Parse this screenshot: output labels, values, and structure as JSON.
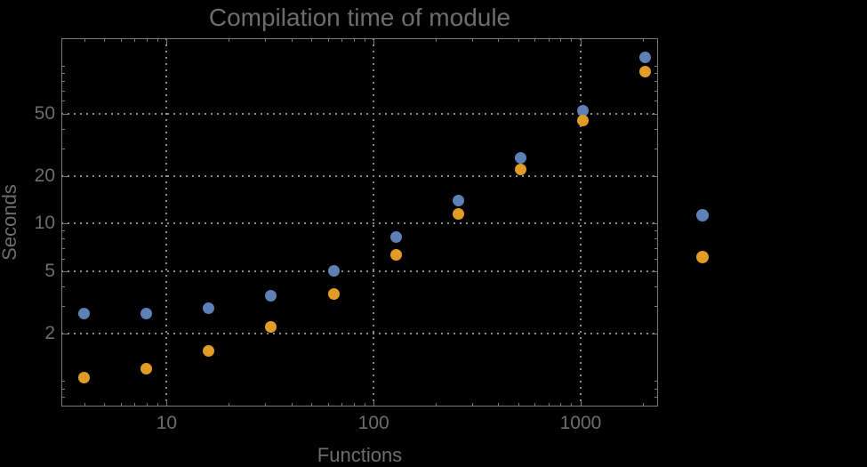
{
  "colors": {
    "background": "#000000",
    "frame": "#7a7a7a",
    "grid": "#8a8a8a",
    "text": "#6d6d6d",
    "series_blue": "#5E81B5",
    "series_orange": "#E09C24"
  },
  "chart_data": {
    "type": "scatter",
    "title": "Compilation time of module",
    "xlabel": "Functions",
    "ylabel": "Seconds",
    "xscale": "log",
    "yscale": "log",
    "xlim": [
      3.1,
      2365
    ],
    "ylim": [
      0.69,
      150
    ],
    "grid": "major-dotted",
    "x": [
      4,
      8,
      16,
      32,
      64,
      128,
      256,
      512,
      1024,
      2048
    ],
    "series": [
      {
        "name": "series-blue",
        "color": "#5E81B5",
        "values": [
          2.7,
          2.7,
          2.9,
          3.5,
          5.0,
          8.2,
          14,
          26,
          52,
          113
        ]
      },
      {
        "name": "series-orange",
        "color": "#E09C24",
        "values": [
          1.05,
          1.2,
          1.55,
          2.2,
          3.55,
          6.3,
          11.5,
          22,
          45,
          92
        ]
      }
    ],
    "x_ticks": {
      "major": [
        {
          "value": 10,
          "label": "10"
        },
        {
          "value": 100,
          "label": "100"
        },
        {
          "value": 1000,
          "label": "1000"
        }
      ],
      "minor": [
        4,
        5,
        6,
        7,
        8,
        9,
        20,
        30,
        40,
        50,
        60,
        70,
        80,
        90,
        200,
        300,
        400,
        500,
        600,
        700,
        800,
        900,
        2000
      ]
    },
    "y_ticks": {
      "major": [
        {
          "value": 2,
          "label": "2"
        },
        {
          "value": 5,
          "label": "5"
        },
        {
          "value": 10,
          "label": "10"
        },
        {
          "value": 20,
          "label": "20"
        },
        {
          "value": 50,
          "label": "50"
        }
      ],
      "minor": [
        0.7,
        0.8,
        0.9,
        1,
        3,
        4,
        6,
        7,
        8,
        9,
        30,
        40,
        60,
        70,
        80,
        90,
        100
      ]
    },
    "legend": {
      "position": "right-outside",
      "markers": [
        {
          "color": "#5E81B5",
          "label": ""
        },
        {
          "color": "#E09C24",
          "label": ""
        }
      ]
    }
  }
}
